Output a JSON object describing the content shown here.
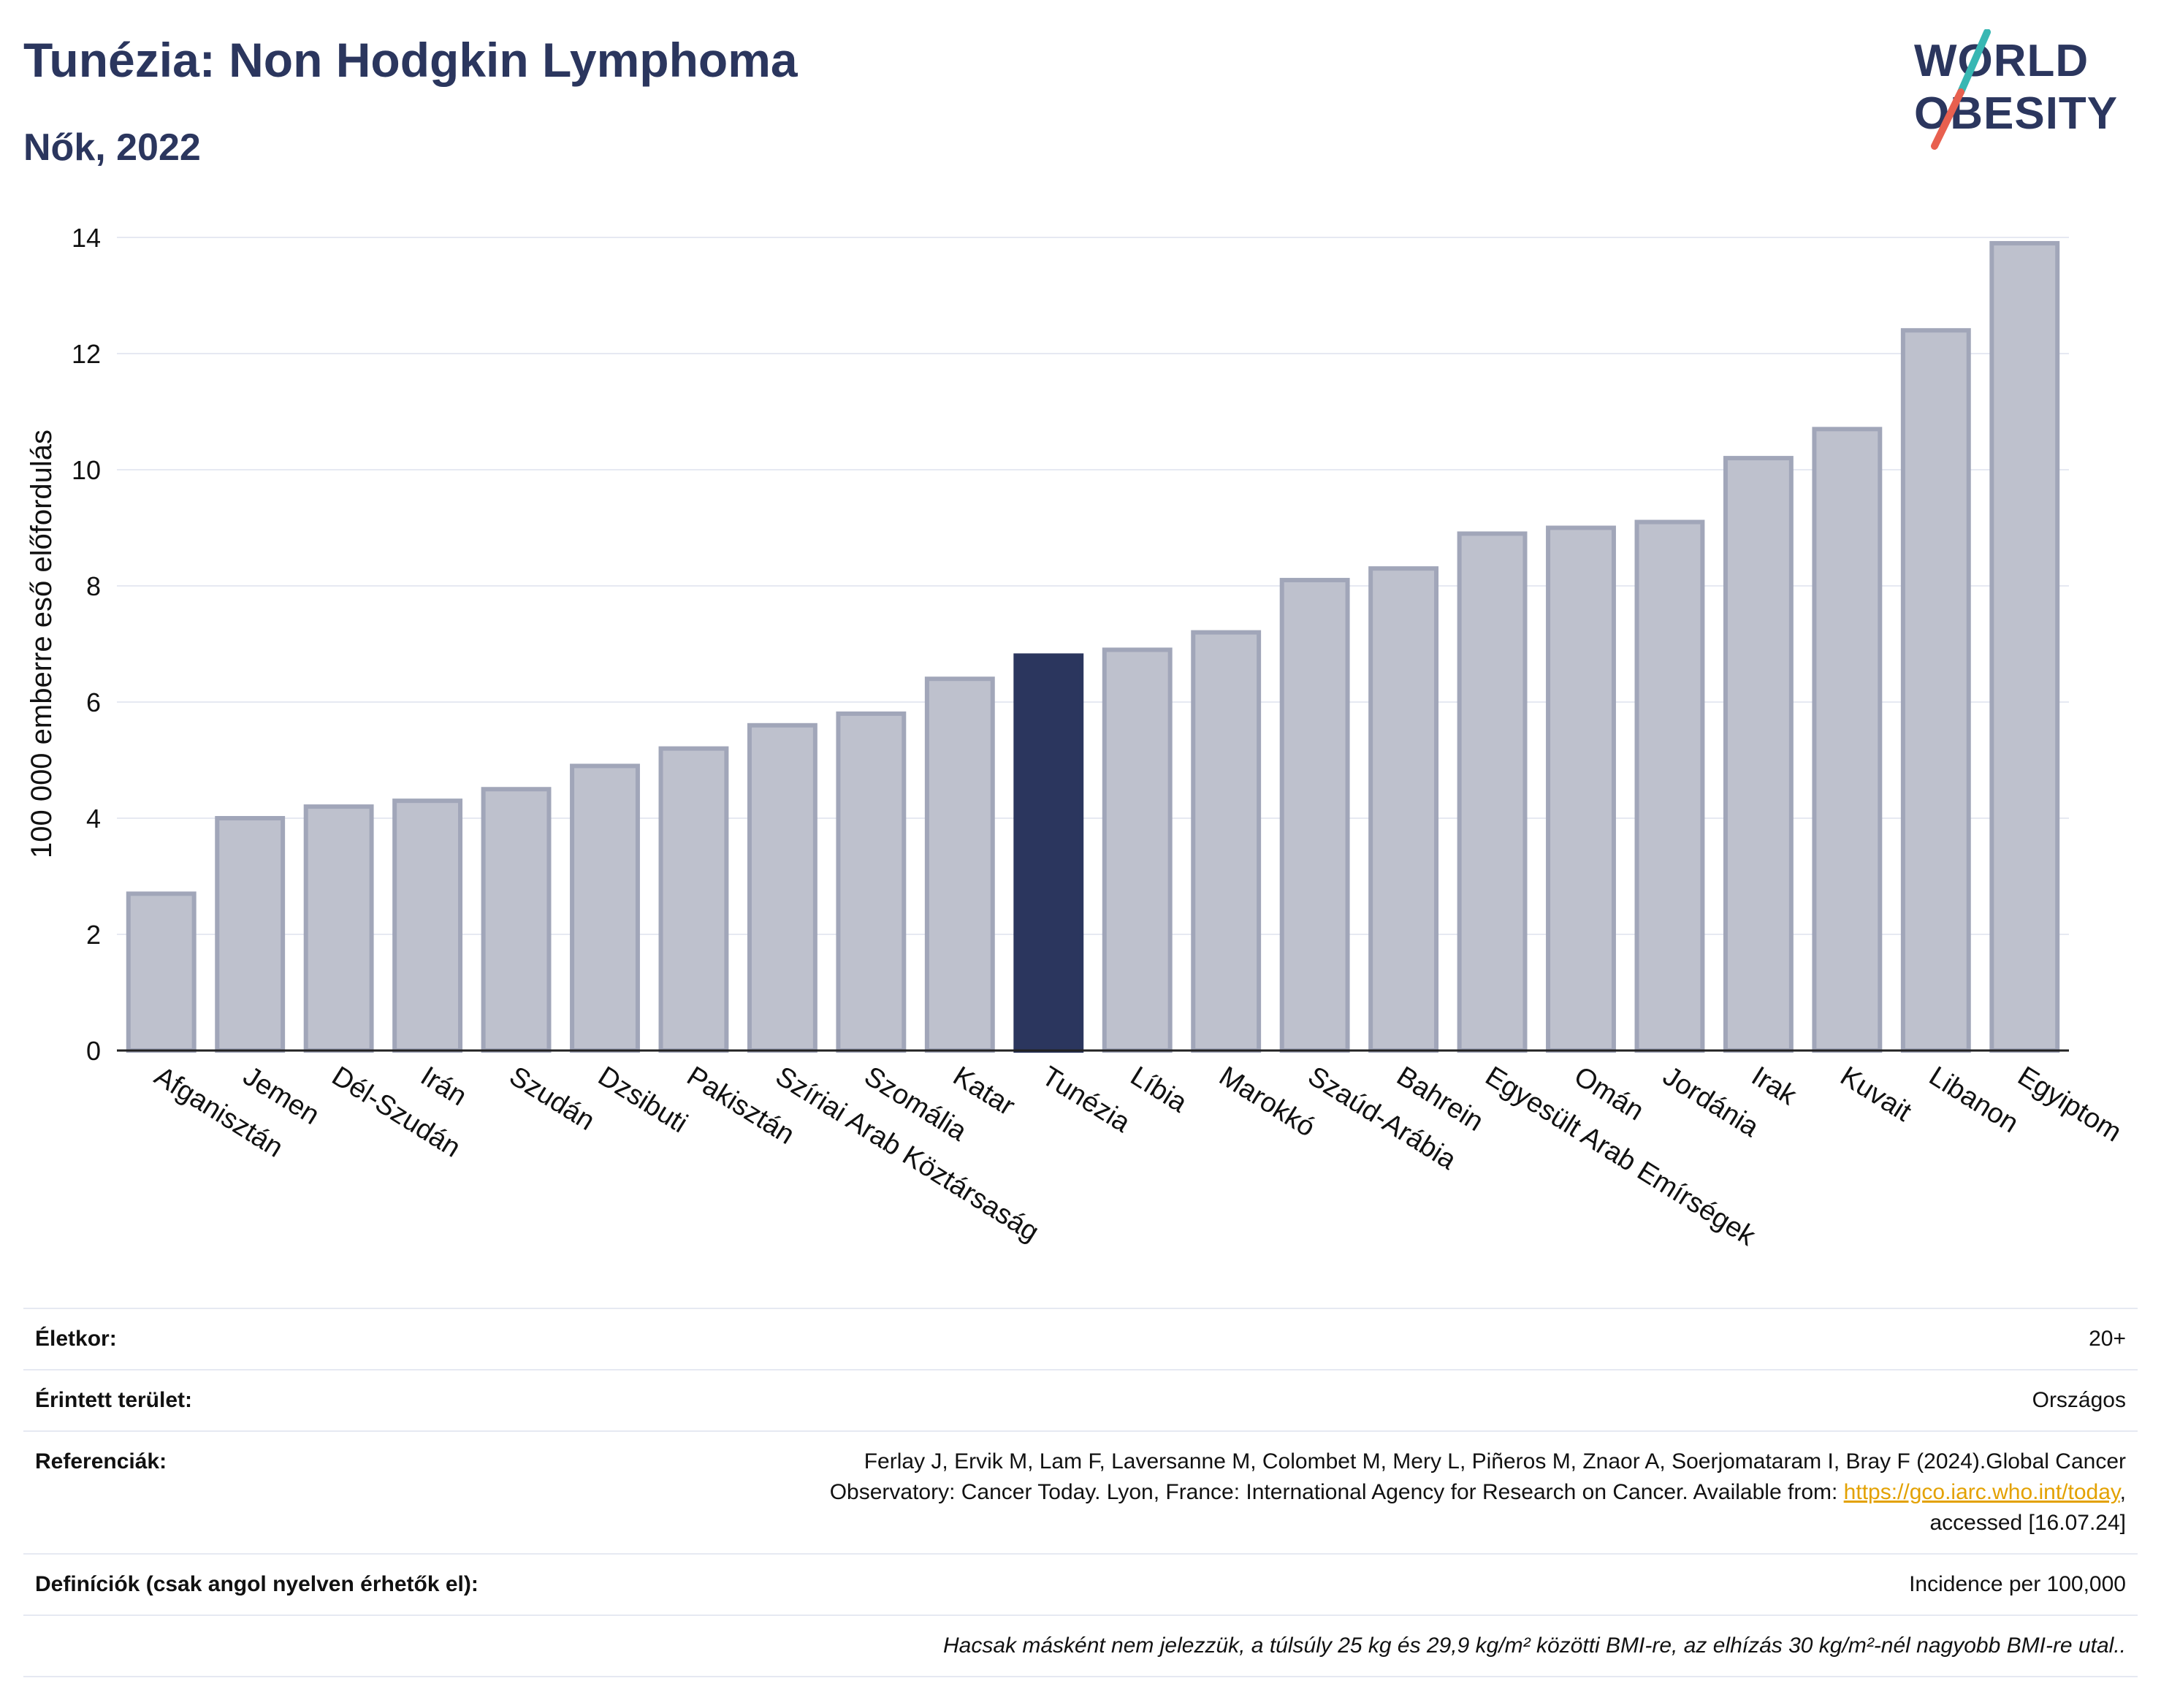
{
  "header": {
    "title": "Tunézia: Non Hodgkin Lymphoma",
    "subtitle": "Nők, 2022"
  },
  "logo": {
    "line1": "WORLD",
    "line2": "OBESITY",
    "slash_colors": [
      "#38b7b3",
      "#e8604f"
    ]
  },
  "colors": {
    "bar_default": "#bec1cd",
    "bar_default_stroke": "#a1a6b9",
    "bar_highlight": "#2b365e",
    "grid": "#e6e9f2",
    "text": "#111111"
  },
  "chart_data": {
    "type": "bar",
    "ylabel": "100 000 emberre eső előfordulás",
    "ylim": [
      0,
      14
    ],
    "yticks": [
      0,
      2,
      4,
      6,
      8,
      10,
      12,
      14
    ],
    "grid": true,
    "highlight": "Tunézia",
    "categories": [
      "Afganisztán",
      "Jemen",
      "Dél-Szudán",
      "Irán",
      "Szudán",
      "Dzsibuti",
      "Pakisztán",
      "Szíriai Arab Köztársaság",
      "Szomália",
      "Katar",
      "Tunézia",
      "Líbia",
      "Marokkó",
      "Szaúd-Arábia",
      "Bahrein",
      "Egyesült Arab Emírségek",
      "Omán",
      "Jordánia",
      "Irak",
      "Kuvait",
      "Libanon",
      "Egyiptom"
    ],
    "values": [
      2.7,
      4.0,
      4.2,
      4.3,
      4.5,
      4.9,
      5.2,
      5.6,
      5.8,
      6.4,
      6.8,
      6.9,
      7.2,
      8.1,
      8.3,
      8.9,
      9.0,
      9.1,
      10.2,
      10.7,
      12.4,
      13.9
    ]
  },
  "footer": {
    "age_label": "Életkor:",
    "age_value": "20+",
    "area_label": "Érintett terület:",
    "area_value": "Országos",
    "ref_label": "Referenciák:",
    "ref_text_1": "Ferlay J, Ervik M, Lam F, Laversanne M, Colombet M, Mery L, Piñeros M, Znaor A, Soerjomataram I, Bray F (2024).Global Cancer",
    "ref_text_2": "Observatory: Cancer Today. Lyon, France: International Agency for Research on Cancer. Available from:",
    "ref_link": "https://gco.iarc.who.int/today",
    "ref_text_3": ",",
    "ref_text_4": "accessed [16.07.24]",
    "def_label": "Definíciók (csak angol nyelven érhetők el):",
    "def_value": "Incidence per 100,000",
    "note": "Hacsak másként nem jelezzük, a túlsúly 25 kg és 29,9 kg/m² közötti BMI-re, az elhízás 30 kg/m²-nél nagyobb BMI-re utal.."
  }
}
